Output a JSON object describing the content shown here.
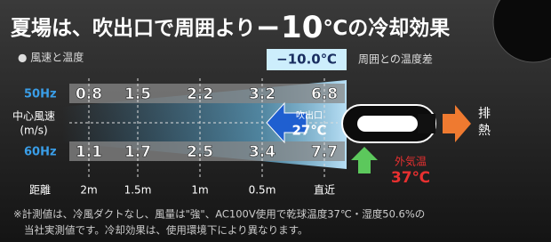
{
  "title": {
    "lead": "夏場は、吹出口で周囲より",
    "big": "−10",
    "tail": "℃の冷却効果"
  },
  "legend": "● 風速と温度",
  "difference": {
    "value": "−10.0℃",
    "label": "周囲との温度差"
  },
  "axis": {
    "label": "中心風速",
    "unit": "(m/s)"
  },
  "rows": [
    {
      "label": "50Hz",
      "values": [
        0.8,
        1.5,
        2.2,
        3.2,
        6.8
      ]
    },
    {
      "label": "60Hz",
      "values": [
        1.1,
        1.7,
        2.5,
        3.4,
        7.7
      ]
    }
  ],
  "outlet": {
    "label": "吹出口",
    "temp": "27℃"
  },
  "exhaust": [
    "排",
    "熱"
  ],
  "outside": {
    "label": "外気温",
    "temp": "37℃"
  },
  "distance": {
    "label": "距離",
    "ticks": [
      "2m",
      "1.5m",
      "1m",
      "0.5m",
      "直近"
    ]
  },
  "footnote": [
    "※計測値は、冷風ダクトなし、風量は\"強\"、AC100V使用で乾球温度37℃・湿度50.6%の",
    "当社実測値です。冷却効果は、使用環境下により異なります。"
  ]
}
